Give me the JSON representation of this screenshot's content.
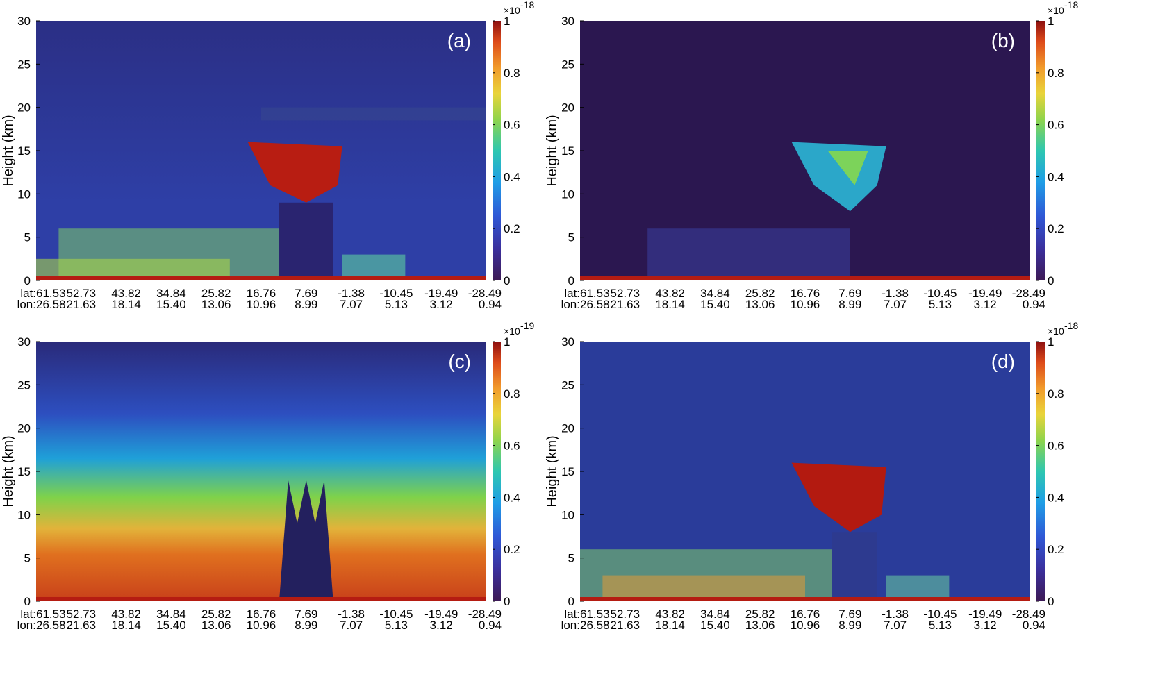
{
  "chart_data": [
    {
      "type": "heatmap",
      "panel_label": "(a)",
      "ylabel": "Height (km)",
      "ylim": [
        0,
        30
      ],
      "yticks": [
        "0",
        "5",
        "10",
        "15",
        "20",
        "25",
        "30"
      ],
      "xtick_labels": {
        "lat_prefix": "lat:",
        "lon_prefix": "lon:",
        "lat": [
          "61.53",
          "52.73",
          "43.82",
          "34.84",
          "25.82",
          "16.76",
          "7.69",
          "-1.38",
          "-10.45",
          "-19.49",
          "-28.49"
        ],
        "lon": [
          "26.58",
          "21.63",
          "18.14",
          "15.40",
          "13.06",
          "10.96",
          "8.99",
          "7.07",
          "5.13",
          "3.12",
          "0.94"
        ]
      },
      "colorbar": {
        "ticks": [
          "0",
          "0.2",
          "0.4",
          "0.6",
          "0.8",
          "1"
        ],
        "range": [
          0,
          1
        ],
        "exponent_base": "×10",
        "exponent_power": "-18",
        "colormap": "jet"
      },
      "background": "#2e3fa6",
      "high_sky": "#2b2f85",
      "field": "total attenuated backscatter: green-yellow aerosol layer 0–6 km, deep convective cloud 6–16 km with red tops, red surface return"
    },
    {
      "type": "heatmap",
      "panel_label": "(b)",
      "ylabel": "Height (km)",
      "ylim": [
        0,
        30
      ],
      "yticks": [
        "0",
        "5",
        "10",
        "15",
        "20",
        "25",
        "30"
      ],
      "xtick_labels": {
        "lat_prefix": "lat:",
        "lon_prefix": "lon:",
        "lat": [
          "61.53",
          "52.73",
          "43.82",
          "34.84",
          "25.82",
          "16.76",
          "7.69",
          "-1.38",
          "-10.45",
          "-19.49",
          "-28.49"
        ],
        "lon": [
          "26.58",
          "21.63",
          "18.14",
          "15.40",
          "13.06",
          "10.96",
          "8.99",
          "7.07",
          "5.13",
          "3.12",
          "0.94"
        ]
      },
      "colorbar": {
        "ticks": [
          "0",
          "0.2",
          "0.4",
          "0.6",
          "0.8",
          "1"
        ],
        "range": [
          0,
          1
        ],
        "exponent_base": "×10",
        "exponent_power": "-18",
        "colormap": "jet"
      },
      "background": "#2b1750",
      "high_sky": "#2b1750",
      "field": "dark background, faint blue aerosol 0–6 km, cyan/green cloud 6–16 km, red surface line"
    },
    {
      "type": "heatmap",
      "panel_label": "(c)",
      "ylabel": "Height (km)",
      "ylim": [
        0,
        30
      ],
      "yticks": [
        "0",
        "5",
        "10",
        "15",
        "20",
        "25",
        "30"
      ],
      "xtick_labels": {
        "lat_prefix": "lat:",
        "lon_prefix": "lon:",
        "lat": [
          "61.53",
          "52.73",
          "43.82",
          "34.84",
          "25.82",
          "16.76",
          "7.69",
          "-1.38",
          "-10.45",
          "-19.49",
          "-28.49"
        ],
        "lon": [
          "26.58",
          "21.63",
          "18.14",
          "15.40",
          "13.06",
          "10.96",
          "8.99",
          "7.07",
          "5.13",
          "3.12",
          "0.94"
        ]
      },
      "colorbar": {
        "ticks": [
          "0",
          "0.2",
          "0.4",
          "0.6",
          "0.8",
          "1"
        ],
        "range": [
          0,
          1
        ],
        "exponent_base": "×10",
        "exponent_power": "-19",
        "colormap": "jet"
      },
      "background": "#2a2a7a",
      "high_sky": "#2a2a7a",
      "field": "molecular signal gradient: dark blue above 20 km to red below 7 km, dark convective core 0–14 km"
    },
    {
      "type": "heatmap",
      "panel_label": "(d)",
      "ylabel": "Height (km)",
      "ylim": [
        0,
        30
      ],
      "yticks": [
        "0",
        "5",
        "10",
        "15",
        "20",
        "25",
        "30"
      ],
      "xtick_labels": {
        "lat_prefix": "lat:",
        "lon_prefix": "lon:",
        "lat": [
          "61.53",
          "52.73",
          "43.82",
          "34.84",
          "25.82",
          "16.76",
          "7.69",
          "-1.38",
          "-10.45",
          "-19.49",
          "-28.49"
        ],
        "lon": [
          "26.58",
          "21.63",
          "18.14",
          "15.40",
          "13.06",
          "10.96",
          "8.99",
          "7.07",
          "5.13",
          "3.12",
          "0.94"
        ]
      },
      "colorbar": {
        "ticks": [
          "0",
          "0.2",
          "0.4",
          "0.6",
          "0.8",
          "1"
        ],
        "range": [
          0,
          1
        ],
        "exponent_base": "×10",
        "exponent_power": "-18",
        "colormap": "jet"
      },
      "background": "#2a3c9a",
      "high_sky": "#2a3c9a",
      "field": "noisy blue background, cyan/yellow aerosol 0–6 km, red convective cloud 10–16 km, red surface"
    }
  ]
}
